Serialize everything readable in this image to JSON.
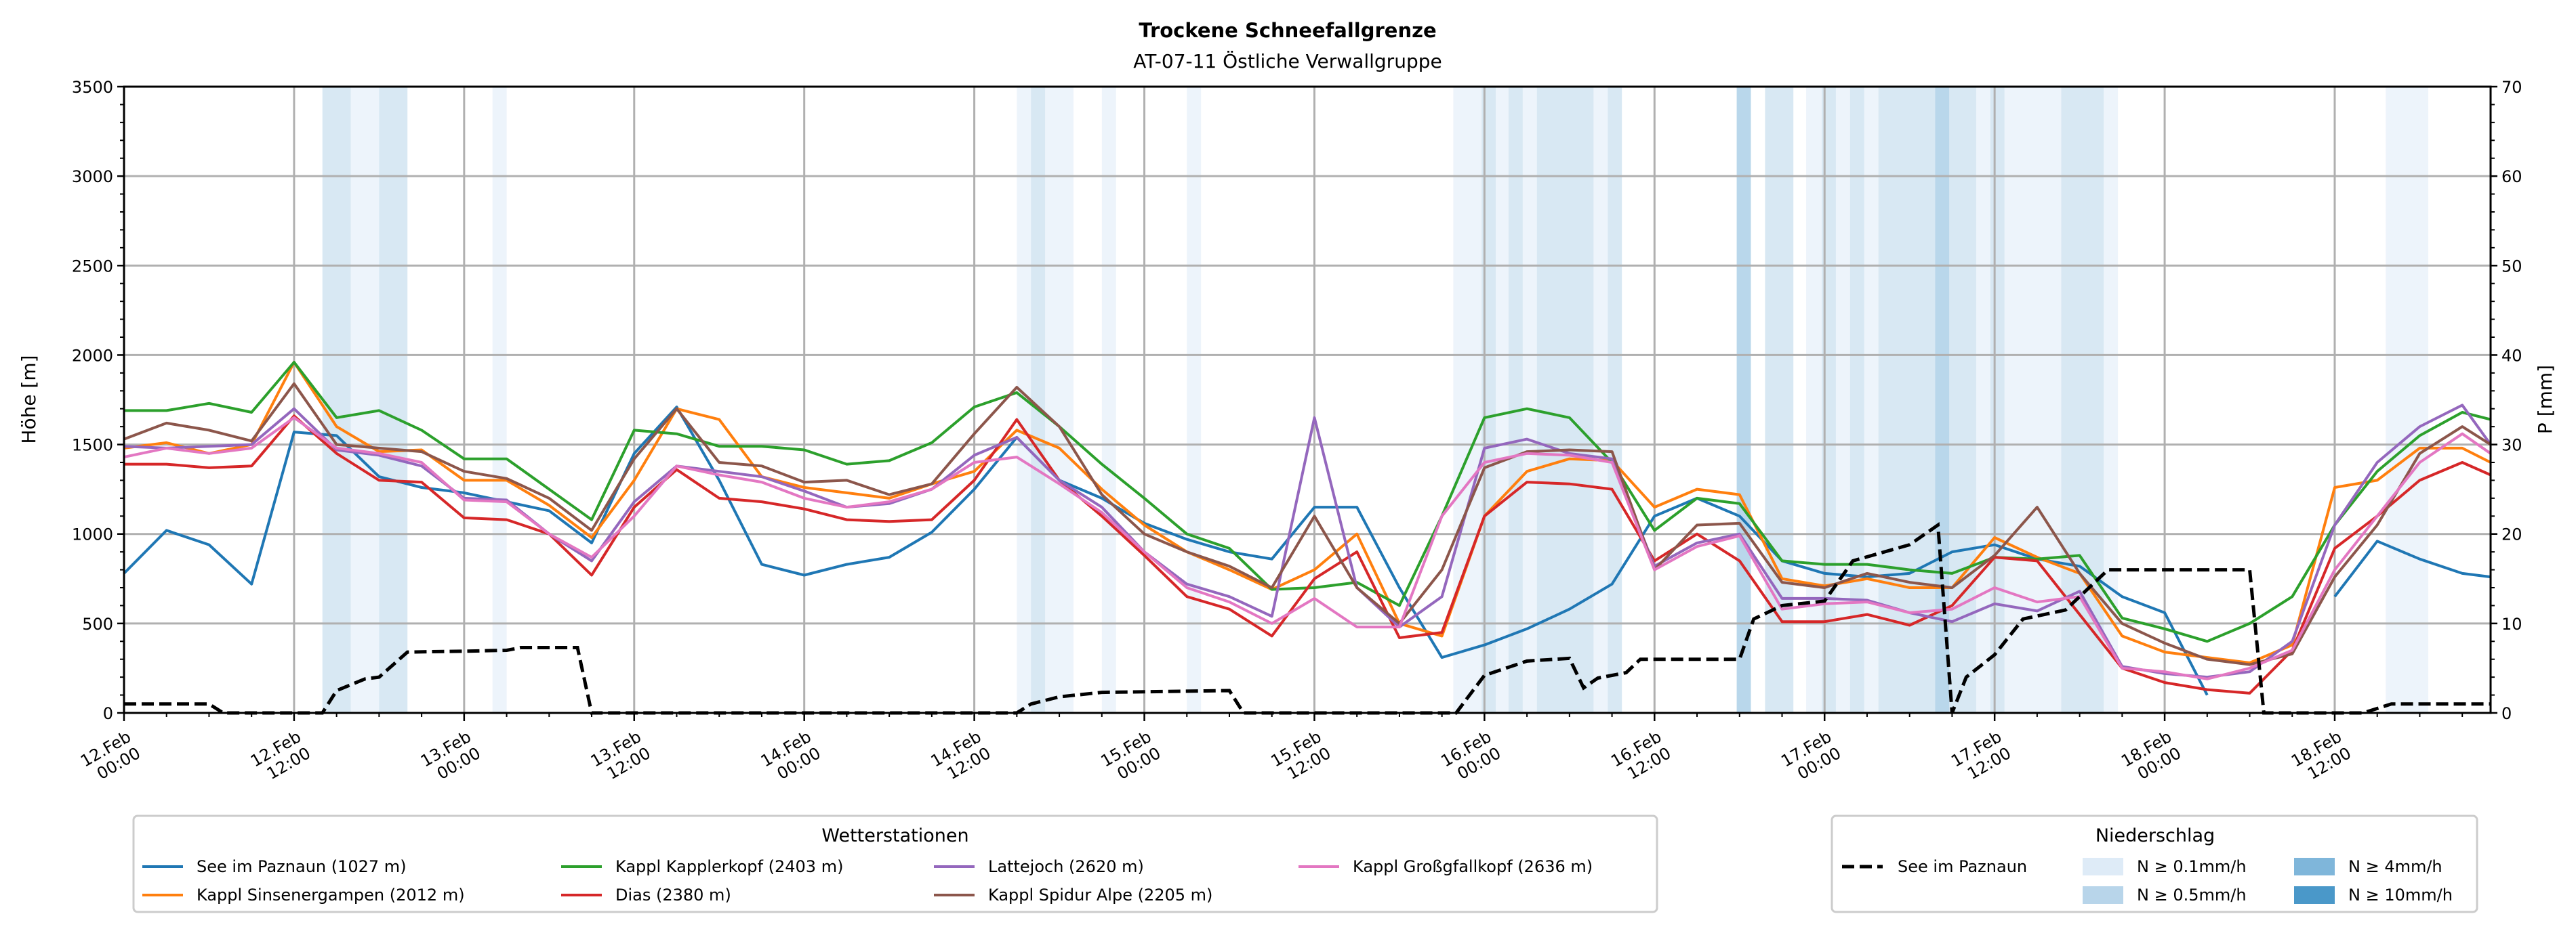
{
  "chart_data": {
    "type": "line",
    "title": "Trockene Schneefallgrenze",
    "subtitle": "AT-07-11 Östliche Verwallgruppe",
    "ylabel": "Höhe [m]",
    "y2label": "P [mm]",
    "ylim": [
      0,
      3500
    ],
    "y2lim": [
      0,
      70
    ],
    "xlim_hours": [
      0,
      167
    ],
    "x_unit": "hours since 12.Feb 00:00",
    "grid": true,
    "yticks": [
      "0",
      "500",
      "1000",
      "1500",
      "2000",
      "2500",
      "3000",
      "3500"
    ],
    "y2ticks": [
      "0",
      "10",
      "20",
      "30",
      "40",
      "50",
      "60",
      "70"
    ],
    "xticks": [
      {
        "hour": 0,
        "date": "12.Feb",
        "time": "00:00"
      },
      {
        "hour": 12,
        "date": "12.Feb",
        "time": "12:00"
      },
      {
        "hour": 24,
        "date": "13.Feb",
        "time": "00:00"
      },
      {
        "hour": 36,
        "date": "13.Feb",
        "time": "12:00"
      },
      {
        "hour": 48,
        "date": "14.Feb",
        "time": "00:00"
      },
      {
        "hour": 60,
        "date": "14.Feb",
        "time": "12:00"
      },
      {
        "hour": 72,
        "date": "15.Feb",
        "time": "00:00"
      },
      {
        "hour": 84,
        "date": "15.Feb",
        "time": "12:00"
      },
      {
        "hour": 96,
        "date": "16.Feb",
        "time": "00:00"
      },
      {
        "hour": 108,
        "date": "16.Feb",
        "time": "12:00"
      },
      {
        "hour": 120,
        "date": "17.Feb",
        "time": "00:00"
      },
      {
        "hour": 132,
        "date": "17.Feb",
        "time": "12:00"
      },
      {
        "hour": 144,
        "date": "18.Feb",
        "time": "00:00"
      },
      {
        "hour": 156,
        "date": "18.Feb",
        "time": "12:00"
      }
    ],
    "x": [
      0,
      3,
      6,
      9,
      12,
      15,
      18,
      21,
      24,
      27,
      30,
      33,
      36,
      39,
      42,
      45,
      48,
      51,
      54,
      57,
      60,
      63,
      66,
      69,
      72,
      75,
      78,
      81,
      84,
      87,
      90,
      93,
      96,
      99,
      102,
      105,
      108,
      111,
      114,
      117,
      120,
      123,
      126,
      129,
      132,
      135,
      138,
      141,
      144,
      147,
      150,
      153,
      156,
      159,
      162,
      165,
      167
    ],
    "series": [
      {
        "name": "See im Paznaun (1027 m)",
        "color": "#1f77b4",
        "values": [
          780,
          1020,
          940,
          720,
          1570,
          1550,
          1320,
          1260,
          1230,
          1180,
          1130,
          950,
          1450,
          1710,
          1300,
          830,
          770,
          830,
          870,
          1010,
          1250,
          1540,
          1300,
          1200,
          1060,
          970,
          900,
          860,
          1150,
          1150,
          700,
          310,
          380,
          470,
          580,
          720,
          1100,
          1200,
          1100,
          850,
          780,
          760,
          780,
          900,
          940,
          860,
          820,
          650,
          560,
          100,
          null,
          null,
          650,
          960,
          860,
          780,
          760
        ]
      },
      {
        "name": "Kappl Sinsenergampen (2012 m)",
        "color": "#ff7f0e",
        "values": [
          1480,
          1510,
          1450,
          1500,
          1960,
          1600,
          1460,
          1470,
          1300,
          1300,
          1160,
          980,
          1300,
          1700,
          1640,
          1320,
          1260,
          1230,
          1200,
          1280,
          1350,
          1580,
          1480,
          1250,
          1050,
          900,
          800,
          690,
          800,
          1000,
          500,
          430,
          1100,
          1350,
          1420,
          1410,
          1150,
          1250,
          1220,
          750,
          710,
          750,
          700,
          700,
          980,
          870,
          780,
          430,
          340,
          310,
          280,
          380,
          1260,
          1300,
          1480,
          1480,
          1400
        ]
      },
      {
        "name": "Kappl Kapplerkopf (2403 m)",
        "color": "#2ca02c",
        "values": [
          1690,
          1690,
          1730,
          1680,
          1960,
          1650,
          1690,
          1580,
          1420,
          1420,
          1250,
          1080,
          1580,
          1560,
          1490,
          1490,
          1470,
          1390,
          1410,
          1510,
          1710,
          1790,
          1600,
          1390,
          1200,
          1000,
          920,
          690,
          700,
          730,
          600,
          1100,
          1650,
          1700,
          1650,
          1400,
          1020,
          1200,
          1170,
          850,
          830,
          830,
          800,
          780,
          870,
          860,
          880,
          530,
          470,
          400,
          500,
          650,
          1050,
          1350,
          1550,
          1680,
          1640
        ]
      },
      {
        "name": "Dias (2380 m)",
        "color": "#d62728",
        "values": [
          1390,
          1390,
          1370,
          1380,
          1660,
          1450,
          1300,
          1290,
          1090,
          1080,
          1000,
          770,
          1150,
          1360,
          1200,
          1180,
          1140,
          1080,
          1070,
          1080,
          1300,
          1640,
          1300,
          1100,
          880,
          650,
          580,
          430,
          750,
          900,
          420,
          450,
          1100,
          1290,
          1280,
          1250,
          850,
          1000,
          850,
          510,
          510,
          550,
          490,
          600,
          870,
          850,
          550,
          250,
          170,
          130,
          110,
          350,
          920,
          1100,
          1300,
          1400,
          1330
        ]
      },
      {
        "name": "Lattejoch (2620 m)",
        "color": "#9467bd",
        "values": [
          1490,
          1480,
          1490,
          1500,
          1700,
          1470,
          1440,
          1380,
          1200,
          1190,
          1000,
          850,
          1180,
          1380,
          1350,
          1320,
          1240,
          1150,
          1170,
          1250,
          1440,
          1540,
          1300,
          1150,
          900,
          720,
          650,
          540,
          1650,
          700,
          480,
          650,
          1480,
          1530,
          1450,
          1420,
          820,
          950,
          1000,
          640,
          640,
          630,
          560,
          510,
          610,
          570,
          680,
          260,
          220,
          200,
          230,
          400,
          1050,
          1400,
          1600,
          1720,
          1500
        ]
      },
      {
        "name": "Kappl Spidur Alpe (2205 m)",
        "color": "#8c564b",
        "values": [
          1530,
          1620,
          1580,
          1520,
          1840,
          1500,
          1480,
          1460,
          1350,
          1310,
          1200,
          1020,
          1420,
          1700,
          1400,
          1380,
          1290,
          1300,
          1220,
          1280,
          1560,
          1820,
          1600,
          1220,
          1000,
          900,
          820,
          700,
          1100,
          700,
          500,
          800,
          1370,
          1460,
          1470,
          1460,
          800,
          1050,
          1060,
          730,
          700,
          780,
          730,
          700,
          880,
          1150,
          780,
          500,
          390,
          300,
          270,
          330,
          760,
          1050,
          1450,
          1600,
          1500
        ]
      },
      {
        "name": "Kappl Großgfallkopf (2636 m)",
        "color": "#e377c2",
        "values": [
          1430,
          1480,
          1450,
          1480,
          1650,
          1480,
          1450,
          1400,
          1190,
          1180,
          1000,
          870,
          1100,
          1380,
          1330,
          1290,
          1200,
          1150,
          1180,
          1250,
          1400,
          1430,
          1280,
          1120,
          900,
          700,
          620,
          500,
          640,
          480,
          480,
          1100,
          1400,
          1450,
          1440,
          1400,
          800,
          930,
          990,
          580,
          610,
          620,
          560,
          580,
          700,
          620,
          650,
          250,
          230,
          190,
          250,
          350,
          800,
          1100,
          1400,
          1560,
          1450
        ]
      }
    ],
    "precip": {
      "name": "See im Paznaun",
      "color": "#000000",
      "points": [
        [
          0,
          1
        ],
        [
          6,
          1
        ],
        [
          7,
          0
        ],
        [
          14,
          0
        ],
        [
          15,
          2.5
        ],
        [
          17,
          3.8
        ],
        [
          18,
          4
        ],
        [
          20,
          6.8
        ],
        [
          24,
          6.9
        ],
        [
          27,
          7
        ],
        [
          28,
          7.3
        ],
        [
          32,
          7.3
        ],
        [
          33,
          0
        ],
        [
          63,
          0
        ],
        [
          64,
          1
        ],
        [
          66,
          1.8
        ],
        [
          69,
          2.3
        ],
        [
          78,
          2.5
        ],
        [
          79,
          0
        ],
        [
          94,
          0
        ],
        [
          96,
          4.2
        ],
        [
          99,
          5.8
        ],
        [
          102,
          6.1
        ],
        [
          103,
          2.8
        ],
        [
          104,
          3.9
        ],
        [
          106,
          4.5
        ],
        [
          107,
          6
        ],
        [
          114,
          6
        ],
        [
          115,
          10.5
        ],
        [
          117,
          12
        ],
        [
          120,
          12.5
        ],
        [
          122,
          17
        ],
        [
          126,
          18.8
        ],
        [
          128,
          21
        ],
        [
          129,
          0
        ],
        [
          130,
          4
        ],
        [
          132,
          6.5
        ],
        [
          134,
          10.5
        ],
        [
          137,
          11.5
        ],
        [
          140,
          16
        ],
        [
          150,
          16
        ],
        [
          151,
          0
        ],
        [
          158,
          0
        ],
        [
          160,
          1
        ],
        [
          167,
          1
        ]
      ]
    },
    "precip_bands": [
      {
        "start": 14,
        "end": 16,
        "level": "0.5"
      },
      {
        "start": 16,
        "end": 18,
        "level": "0.1"
      },
      {
        "start": 18,
        "end": 20,
        "level": "0.5"
      },
      {
        "start": 26,
        "end": 27,
        "level": "0.1"
      },
      {
        "start": 63,
        "end": 64,
        "level": "0.1"
      },
      {
        "start": 64,
        "end": 65,
        "level": "0.5"
      },
      {
        "start": 65,
        "end": 67,
        "level": "0.1"
      },
      {
        "start": 69,
        "end": 70,
        "level": "0.1"
      },
      {
        "start": 75,
        "end": 76,
        "level": "0.1"
      },
      {
        "start": 93.8,
        "end": 95.8,
        "level": "0.1"
      },
      {
        "start": 95.8,
        "end": 96.8,
        "level": "0.5"
      },
      {
        "start": 96.8,
        "end": 97.7,
        "level": "0.1"
      },
      {
        "start": 97.7,
        "end": 98.7,
        "level": "0.5"
      },
      {
        "start": 98.7,
        "end": 99.7,
        "level": "0.1"
      },
      {
        "start": 99.7,
        "end": 103.7,
        "level": "0.5"
      },
      {
        "start": 103.7,
        "end": 104.7,
        "level": "0.1"
      },
      {
        "start": 104.7,
        "end": 105.7,
        "level": "0.5"
      },
      {
        "start": 113.8,
        "end": 114.8,
        "level": "4"
      },
      {
        "start": 115.8,
        "end": 117.8,
        "level": "0.5"
      },
      {
        "start": 118.7,
        "end": 119.8,
        "level": "0.1"
      },
      {
        "start": 119.8,
        "end": 120.8,
        "level": "0.5"
      },
      {
        "start": 120.8,
        "end": 121.8,
        "level": "0.1"
      },
      {
        "start": 121.8,
        "end": 122.8,
        "level": "0.5"
      },
      {
        "start": 122.8,
        "end": 123.8,
        "level": "0.1"
      },
      {
        "start": 123.8,
        "end": 127.8,
        "level": "0.5"
      },
      {
        "start": 127.8,
        "end": 128.8,
        "level": "4"
      },
      {
        "start": 128.8,
        "end": 130.7,
        "level": "0.5"
      },
      {
        "start": 130.7,
        "end": 131.7,
        "level": "0.1"
      },
      {
        "start": 131.7,
        "end": 132.7,
        "level": "0.5"
      },
      {
        "start": 132.7,
        "end": 136.7,
        "level": "0.1"
      },
      {
        "start": 136.7,
        "end": 139.7,
        "level": "0.5"
      },
      {
        "start": 139.7,
        "end": 140.7,
        "level": "0.1"
      },
      {
        "start": 159.6,
        "end": 162.6,
        "level": "0.1"
      }
    ],
    "legend_stations": {
      "title": "Wetterstationen",
      "placement": "bottom-left"
    },
    "legend_precip": {
      "title": "Niederschlag",
      "placement": "bottom-right",
      "line_label": "See im Paznaun",
      "levels": [
        {
          "level": "0.1",
          "label": "N ≥ 0.1mm/h",
          "color": "#deebf7"
        },
        {
          "level": "0.5",
          "label": "N ≥ 0.5mm/h",
          "color": "#b8d5ea"
        },
        {
          "level": "4",
          "label": "N ≥ 4mm/h",
          "color": "#7fb6da"
        },
        {
          "level": "10",
          "label": "N ≥ 10mm/h",
          "color": "#4a98c9"
        }
      ]
    }
  }
}
